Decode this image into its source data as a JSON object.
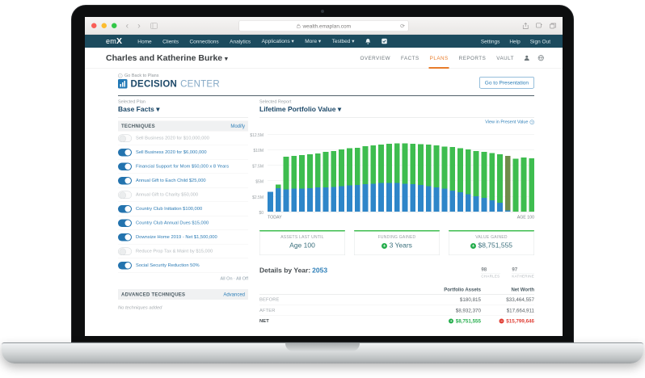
{
  "browser": {
    "url": "wealth.emaplan.com"
  },
  "nav": {
    "brand_em": "em",
    "brand_x": "X",
    "items": [
      "Home",
      "Clients",
      "Connections",
      "Analytics",
      "Applications ▾",
      "More ▾",
      "Testbed ▾"
    ],
    "right_items": [
      "Settings",
      "Help",
      "Sign Out"
    ]
  },
  "client": {
    "name": "Charles and Katherine Burke",
    "caret": "▾",
    "tabs": [
      "OVERVIEW",
      "FACTS",
      "PLANS",
      "REPORTS",
      "VAULT"
    ],
    "active_tab": "PLANS"
  },
  "decision_center": {
    "back_link": "Go Back to Plans",
    "title_bold": "DECISION",
    "title_light": "CENTER",
    "presentation_button": "Go to Presentation"
  },
  "plan_panel": {
    "selected_label": "Selected Plan",
    "selected_value": "Base Facts ▾",
    "techniques_header": "TECHNIQUES",
    "modify_link": "Modify",
    "techniques": [
      {
        "label": "Sell Business 2020 for $10,000,000",
        "on": false
      },
      {
        "label": "Sell Business 2020 for $6,000,000",
        "on": true
      },
      {
        "label": "Financial Support for Mom $50,000 x 8 Years",
        "on": true
      },
      {
        "label": "Annual Gift to Each Child $25,000",
        "on": true
      },
      {
        "label": "Annual Gift to Charity $50,000",
        "on": false
      },
      {
        "label": "Country Club Initiation $100,000",
        "on": true
      },
      {
        "label": "Country Club Annual Dues $15,000",
        "on": true
      },
      {
        "label": "Downsize Home 2019 - Net $1,500,000",
        "on": true
      },
      {
        "label": "Reduce Prop Tax & Maint by $15,000",
        "on": false
      },
      {
        "label": "Social Security Reduction 50%",
        "on": true
      }
    ],
    "all_on": "All On",
    "all_sep": "·",
    "all_off": "All Off",
    "advanced_header": "ADVANCED TECHNIQUES",
    "advanced_link": "Advanced",
    "empty_text": "No techniques added"
  },
  "report_panel": {
    "selected_label": "Selected Report",
    "selected_value": "Lifetime Portfolio Value ▾",
    "present_value_link": "View in Present Value"
  },
  "chart_data": {
    "type": "bar",
    "stacked": true,
    "title": "Lifetime Portfolio Value",
    "unit": "USD millions",
    "ylim_millions": [
      0,
      12.5
    ],
    "y_ticks": [
      "$12.5M",
      "$10M",
      "$7.5M",
      "$5M",
      "$2.5M",
      "$0"
    ],
    "x_start_label": "TODAY",
    "x_end_label": "AGE 100",
    "grid": true,
    "legend": "none",
    "selected_bar_index": 30,
    "selected_bar_color": "#708c49",
    "series": [
      {
        "name": "Before Techniques (Base Facts)",
        "color": "#2e86c9",
        "values_millions": [
          3.2,
          3.8,
          3.6,
          3.7,
          3.7,
          3.8,
          3.9,
          3.9,
          4.0,
          4.1,
          4.2,
          4.3,
          4.4,
          4.5,
          4.6,
          4.6,
          4.6,
          4.5,
          4.4,
          4.3,
          4.1,
          3.9,
          3.7,
          3.4,
          3.1,
          2.8,
          2.5,
          2.2,
          1.8,
          1.4,
          0.2,
          0,
          0,
          0
        ]
      },
      {
        "name": "Value Gained After Techniques",
        "color": "#3ebd4f",
        "values_millions": [
          0,
          0.6,
          5.3,
          5.3,
          5.4,
          5.5,
          5.5,
          5.7,
          5.8,
          5.9,
          6.0,
          6.0,
          6.1,
          6.2,
          6.2,
          6.3,
          6.4,
          6.5,
          6.5,
          6.6,
          6.7,
          6.8,
          6.8,
          7.0,
          7.1,
          7.2,
          7.3,
          7.4,
          7.6,
          7.8,
          8.8,
          8.5,
          8.7,
          8.6
        ]
      }
    ]
  },
  "stats": [
    {
      "label": "ASSETS LAST UNTIL",
      "value": "Age 100",
      "icon": ""
    },
    {
      "label": "FUNDING GAINED",
      "value": "3 Years",
      "icon": "plus"
    },
    {
      "label": "VALUE GAINED",
      "value": "$8,751,555",
      "icon": "plus"
    }
  ],
  "details": {
    "title": "Details by Year:",
    "year": "2053",
    "persons": [
      {
        "age": "98",
        "name": "CHARLES"
      },
      {
        "age": "97",
        "name": "KATHERINE"
      }
    ],
    "columns": [
      "Portfolio Assets",
      "Net Worth"
    ],
    "rows": [
      {
        "label": "BEFORE",
        "values": [
          "$180,815",
          "$33,464,557"
        ],
        "signs": [
          "",
          ""
        ]
      },
      {
        "label": "AFTER",
        "values": [
          "$8,932,370",
          "$17,664,911"
        ],
        "signs": [
          "",
          ""
        ]
      },
      {
        "label": "NET",
        "values": [
          "$8,751,555",
          "$15,799,646"
        ],
        "signs": [
          "plus",
          "minus"
        ]
      }
    ]
  },
  "icons": {
    "plus": "+",
    "minus": "−",
    "back_arrow": "‹",
    "refresh": "⟳",
    "check": "✓"
  },
  "colors": {
    "nav_teal": "#1c4b5e",
    "accent_blue": "#2e7fb8",
    "active_orange": "#e87c2a",
    "bar_blue": "#2e86c9",
    "bar_green": "#3ebd4f",
    "bar_selected": "#708c49",
    "positive_green": "#27ae4e",
    "negative_red": "#e04138"
  }
}
